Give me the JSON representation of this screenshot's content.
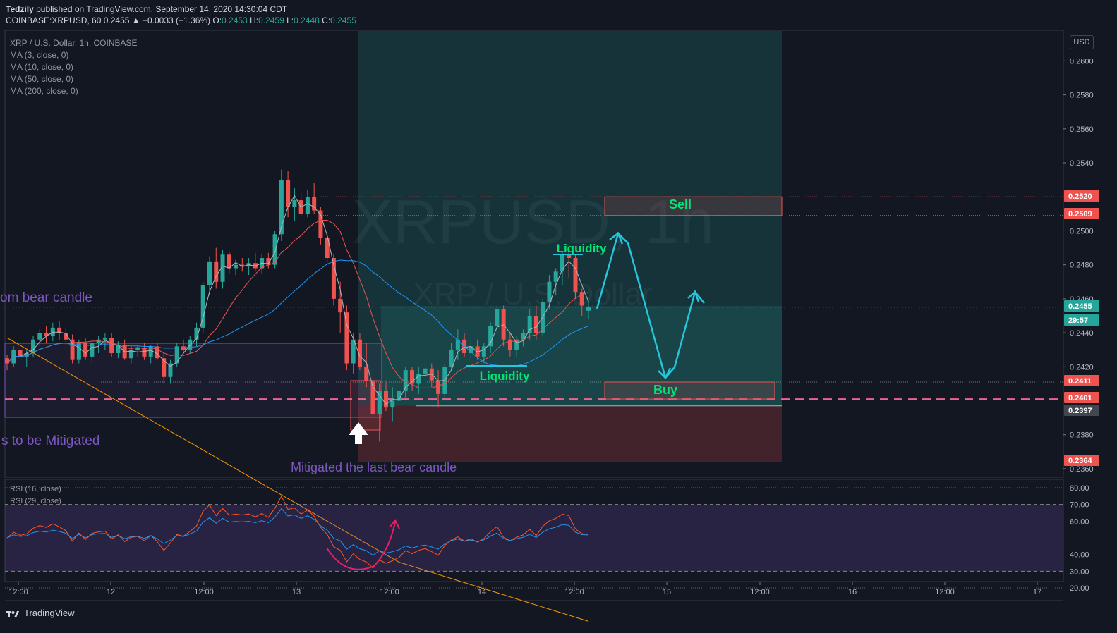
{
  "header": {
    "author": "Tedzily",
    "published_line": " published on TradingView.com, September 14, 2020 14:30:04 CDT",
    "symbol_line": "COINBASE:XRPUSD, 60 0.2455 ▲ +0.0033 (+1.36%) O:",
    "o": "0.2453",
    "h_label": " H:",
    "h": "0.2459",
    "l_label": " L:",
    "l": "0.2448",
    "c_label": " C:",
    "c": "0.2455"
  },
  "legend": {
    "title": "XRP / U.S. Dollar, 1h, COINBASE",
    "ma1": "MA (3, close, 0)",
    "ma2": "MA (10, close, 0)",
    "ma3": "MA (50, close, 0)",
    "ma4": "MA (200, close, 0)"
  },
  "rsi_legend": {
    "r1": "RSI (16, close)",
    "r2": "RSI (29, close)"
  },
  "currency_button": "USD",
  "footer": {
    "brand": "TradingView"
  },
  "watermark": {
    "line1": "XRPUSD, 1h",
    "line2": "XRP / U.S. Dollar"
  },
  "annotations": {
    "sell": "Sell",
    "buy": "Buy",
    "liq_top": "Liquidity",
    "liq_bottom": "Liquidity",
    "left_top": "om bear candle",
    "left_bottom": "s to be Mitigated",
    "mitigated": "Mitigated the last bear candle"
  },
  "colors": {
    "background": "#131722",
    "up": "#26a69a",
    "down": "#ef5350",
    "ma3": "#b2b5be",
    "ma10": "#ef5350",
    "ma50": "#2196f3",
    "ma200": "#ff9800",
    "annotation_purple": "#7e57c2",
    "annotation_green": "#00e676",
    "arrow_cyan": "#26c6da"
  },
  "chart_data": {
    "type": "candlestick",
    "symbol": "COINBASE:XRPUSD",
    "timeframe": "1h",
    "price_axis": {
      "ticks": [
        "0.2600",
        "0.2580",
        "0.2560",
        "0.2540",
        "0.2500",
        "0.2480",
        "0.2460",
        "0.2440",
        "0.2420",
        "0.2380",
        "0.2360"
      ],
      "range": [
        0.2355,
        0.2618
      ]
    },
    "price_labels": [
      {
        "value": "0.2520",
        "color": "#ef5350"
      },
      {
        "value": "0.2509",
        "color": "#ef5350"
      },
      {
        "value": "0.2455",
        "color": "#26a69a"
      },
      {
        "value": "29:57",
        "color": "#26a69a"
      },
      {
        "value": "0.2411",
        "color": "#ef5350"
      },
      {
        "value": "0.2401",
        "color": "#ef5350"
      },
      {
        "value": "0.2397",
        "color": "#434651"
      },
      {
        "value": "0.2364",
        "color": "#ef5350"
      }
    ],
    "time_axis": [
      "12:00",
      "12",
      "12:00",
      "13",
      "12:00",
      "14",
      "12:00",
      "15",
      "12:00",
      "16",
      "12:00",
      "17"
    ],
    "rsi_axis": [
      "80.00",
      "70.00",
      "60.00",
      "40.00",
      "30.00",
      "20.00"
    ],
    "candles": [
      [
        0.2425,
        0.2427,
        0.2418,
        0.2422
      ],
      [
        0.2422,
        0.2432,
        0.242,
        0.243
      ],
      [
        0.243,
        0.2433,
        0.2424,
        0.2426
      ],
      [
        0.2426,
        0.243,
        0.242,
        0.2428
      ],
      [
        0.2428,
        0.2438,
        0.2426,
        0.2436
      ],
      [
        0.2436,
        0.2442,
        0.2432,
        0.244
      ],
      [
        0.244,
        0.2444,
        0.2434,
        0.2438
      ],
      [
        0.2438,
        0.2446,
        0.2435,
        0.2443
      ],
      [
        0.2443,
        0.2447,
        0.2436,
        0.244
      ],
      [
        0.244,
        0.2443,
        0.2433,
        0.2436
      ],
      [
        0.2436,
        0.2439,
        0.2422,
        0.2424
      ],
      [
        0.2424,
        0.2436,
        0.2422,
        0.2434
      ],
      [
        0.2434,
        0.2437,
        0.2424,
        0.2426
      ],
      [
        0.2426,
        0.2436,
        0.2422,
        0.2434
      ],
      [
        0.2434,
        0.2438,
        0.2428,
        0.2436
      ],
      [
        0.2436,
        0.244,
        0.243,
        0.2437
      ],
      [
        0.2437,
        0.244,
        0.2426,
        0.2428
      ],
      [
        0.2428,
        0.2435,
        0.2425,
        0.2433
      ],
      [
        0.2433,
        0.2436,
        0.2424,
        0.2425
      ],
      [
        0.2425,
        0.2432,
        0.2422,
        0.243
      ],
      [
        0.243,
        0.2433,
        0.2426,
        0.2431
      ],
      [
        0.2431,
        0.2434,
        0.2424,
        0.2426
      ],
      [
        0.2426,
        0.2433,
        0.2422,
        0.2432
      ],
      [
        0.2432,
        0.2434,
        0.2424,
        0.2425
      ],
      [
        0.2425,
        0.2428,
        0.241,
        0.2414
      ],
      [
        0.2414,
        0.2424,
        0.241,
        0.2422
      ],
      [
        0.2422,
        0.2434,
        0.242,
        0.2432
      ],
      [
        0.2432,
        0.2436,
        0.2428,
        0.243
      ],
      [
        0.243,
        0.2438,
        0.2428,
        0.2436
      ],
      [
        0.2436,
        0.2446,
        0.2432,
        0.2443
      ],
      [
        0.2443,
        0.247,
        0.244,
        0.2468
      ],
      [
        0.2468,
        0.2485,
        0.2462,
        0.2482
      ],
      [
        0.2482,
        0.249,
        0.2466,
        0.247
      ],
      [
        0.247,
        0.2489,
        0.2466,
        0.2486
      ],
      [
        0.2486,
        0.2488,
        0.2475,
        0.2478
      ],
      [
        0.2478,
        0.2483,
        0.2474,
        0.248
      ],
      [
        0.248,
        0.2484,
        0.2476,
        0.2479
      ],
      [
        0.2479,
        0.2484,
        0.2474,
        0.2481
      ],
      [
        0.2481,
        0.2487,
        0.2476,
        0.2478
      ],
      [
        0.2478,
        0.2486,
        0.2475,
        0.2484
      ],
      [
        0.2484,
        0.2487,
        0.2478,
        0.248
      ],
      [
        0.248,
        0.25,
        0.2478,
        0.2498
      ],
      [
        0.2498,
        0.2536,
        0.2494,
        0.253
      ],
      [
        0.253,
        0.2535,
        0.2508,
        0.2514
      ],
      [
        0.2514,
        0.2525,
        0.2506,
        0.2518
      ],
      [
        0.2518,
        0.2522,
        0.2508,
        0.251
      ],
      [
        0.251,
        0.2524,
        0.2508,
        0.252
      ],
      [
        0.252,
        0.2528,
        0.251,
        0.2512
      ],
      [
        0.2512,
        0.2514,
        0.2492,
        0.2496
      ],
      [
        0.2496,
        0.2498,
        0.2482,
        0.2484
      ],
      [
        0.2484,
        0.2486,
        0.2456,
        0.246
      ],
      [
        0.246,
        0.247,
        0.244,
        0.2452
      ],
      [
        0.2452,
        0.2456,
        0.2418,
        0.2422
      ],
      [
        0.2422,
        0.244,
        0.2416,
        0.2436
      ],
      [
        0.2436,
        0.244,
        0.2418,
        0.242
      ],
      [
        0.242,
        0.2434,
        0.2408,
        0.2412
      ],
      [
        0.2412,
        0.2416,
        0.2384,
        0.2392
      ],
      [
        0.2392,
        0.241,
        0.2376,
        0.2406
      ],
      [
        0.2406,
        0.2412,
        0.2394,
        0.2396
      ],
      [
        0.2396,
        0.2408,
        0.2388,
        0.24
      ],
      [
        0.24,
        0.2412,
        0.2392,
        0.2406
      ],
      [
        0.2406,
        0.242,
        0.2402,
        0.2418
      ],
      [
        0.2418,
        0.242,
        0.2406,
        0.241
      ],
      [
        0.241,
        0.242,
        0.2404,
        0.2416
      ],
      [
        0.2416,
        0.2422,
        0.241,
        0.2419
      ],
      [
        0.2419,
        0.2422,
        0.2408,
        0.2412
      ],
      [
        0.2412,
        0.2418,
        0.2396,
        0.2404
      ],
      [
        0.2404,
        0.2422,
        0.24,
        0.242
      ],
      [
        0.242,
        0.2434,
        0.2418,
        0.243
      ],
      [
        0.243,
        0.2442,
        0.2424,
        0.2436
      ],
      [
        0.2436,
        0.244,
        0.2426,
        0.2428
      ],
      [
        0.2428,
        0.2436,
        0.2424,
        0.2432
      ],
      [
        0.2432,
        0.2436,
        0.2424,
        0.2426
      ],
      [
        0.2426,
        0.2434,
        0.2422,
        0.2432
      ],
      [
        0.2432,
        0.2446,
        0.2428,
        0.2444
      ],
      [
        0.2444,
        0.2456,
        0.244,
        0.2454
      ],
      [
        0.2454,
        0.2456,
        0.2432,
        0.2436
      ],
      [
        0.2436,
        0.244,
        0.2426,
        0.243
      ],
      [
        0.243,
        0.2438,
        0.2426,
        0.2436
      ],
      [
        0.2436,
        0.2442,
        0.2432,
        0.244
      ],
      [
        0.244,
        0.2454,
        0.2436,
        0.245
      ],
      [
        0.245,
        0.2456,
        0.2436,
        0.244
      ],
      [
        0.244,
        0.246,
        0.2438,
        0.2458
      ],
      [
        0.2458,
        0.2474,
        0.2454,
        0.247
      ],
      [
        0.247,
        0.2478,
        0.2462,
        0.2476
      ],
      [
        0.2476,
        0.2488,
        0.2468,
        0.2486
      ],
      [
        0.2486,
        0.2489,
        0.2472,
        0.2484
      ],
      [
        0.2484,
        0.2486,
        0.246,
        0.2464
      ],
      [
        0.2464,
        0.2466,
        0.245,
        0.2456
      ],
      [
        0.2453,
        0.2459,
        0.2448,
        0.2455
      ]
    ]
  }
}
